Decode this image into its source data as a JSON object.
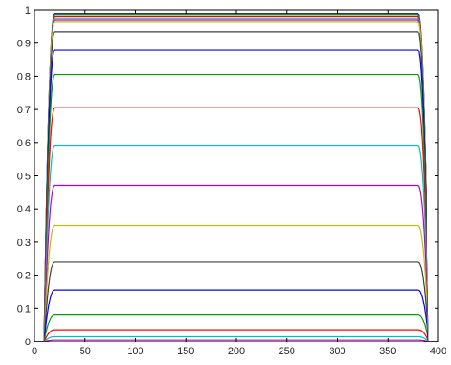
{
  "chart_data": {
    "type": "line",
    "title": "",
    "xlabel": "",
    "ylabel": "",
    "xlim": [
      0,
      400
    ],
    "ylim": [
      0,
      1
    ],
    "x_ticks": [
      0,
      50,
      100,
      150,
      200,
      250,
      300,
      350,
      400
    ],
    "y_ticks": [
      0,
      0.1,
      0.2,
      0.3,
      0.4,
      0.5,
      0.6,
      0.7,
      0.8,
      0.9,
      1
    ],
    "x_tick_labels": [
      "0",
      "50",
      "100",
      "150",
      "200",
      "250",
      "300",
      "350",
      "400"
    ],
    "y_tick_labels": [
      "0",
      "0.1",
      "0.2",
      "0.3",
      "0.4",
      "0.5",
      "0.6",
      "0.7",
      "0.8",
      "0.9",
      "1"
    ],
    "grid": false,
    "legend": "none",
    "profile": {
      "x_start": 10,
      "x_top_start": 20,
      "x_top_end": 380,
      "x_end": 390
    },
    "series": [
      {
        "plateau": 0.99,
        "color": "#0000ff"
      },
      {
        "plateau": 0.985,
        "color": "#00a000"
      },
      {
        "plateau": 0.98,
        "color": "#ff0000"
      },
      {
        "plateau": 0.975,
        "color": "#00bfbf"
      },
      {
        "plateau": 0.97,
        "color": "#bf00bf"
      },
      {
        "plateau": 0.965,
        "color": "#bfbf00"
      },
      {
        "plateau": 0.935,
        "color": "#404040"
      },
      {
        "plateau": 0.88,
        "color": "#0000ff"
      },
      {
        "plateau": 0.805,
        "color": "#00a000"
      },
      {
        "plateau": 0.705,
        "color": "#ff0000"
      },
      {
        "plateau": 0.59,
        "color": "#00bfbf"
      },
      {
        "plateau": 0.47,
        "color": "#bf00bf"
      },
      {
        "plateau": 0.35,
        "color": "#bfbf00"
      },
      {
        "plateau": 0.24,
        "color": "#404040"
      },
      {
        "plateau": 0.155,
        "color": "#0000ff"
      },
      {
        "plateau": 0.08,
        "color": "#00a000"
      },
      {
        "plateau": 0.035,
        "color": "#ff0000"
      },
      {
        "plateau": 0.015,
        "color": "#00bfbf"
      },
      {
        "plateau": 0.005,
        "color": "#bf00bf"
      }
    ]
  }
}
